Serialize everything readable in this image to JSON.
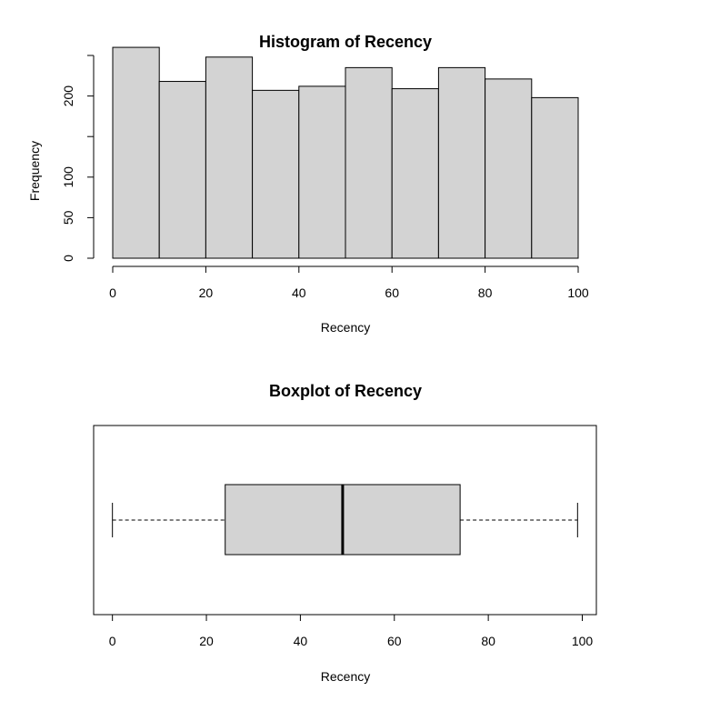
{
  "chart_data": [
    {
      "type": "bar",
      "title": "Histogram of Recency",
      "xlabel": "Recency",
      "ylabel": "Frequency",
      "bins": [
        {
          "x0": 0,
          "x1": 10,
          "count": 260
        },
        {
          "x0": 10,
          "x1": 20,
          "count": 218
        },
        {
          "x0": 20,
          "x1": 30,
          "count": 248
        },
        {
          "x0": 30,
          "x1": 40,
          "count": 207
        },
        {
          "x0": 40,
          "x1": 50,
          "count": 212
        },
        {
          "x0": 50,
          "x1": 60,
          "count": 235
        },
        {
          "x0": 60,
          "x1": 70,
          "count": 209
        },
        {
          "x0": 70,
          "x1": 80,
          "count": 235
        },
        {
          "x0": 80,
          "x1": 90,
          "count": 221
        },
        {
          "x0": 90,
          "x1": 100,
          "count": 198
        }
      ],
      "xticks": [
        0,
        20,
        40,
        60,
        80,
        100
      ],
      "yticks": [
        0,
        50,
        100,
        150,
        200,
        250
      ],
      "ytick_labels": [
        "0",
        "50",
        "100",
        "",
        "200",
        ""
      ],
      "xlim": [
        0,
        100
      ],
      "ylim": [
        0,
        250
      ],
      "bar_color": "#d3d3d3",
      "grid": false
    },
    {
      "type": "boxplot",
      "title": "Boxplot of Recency",
      "xlabel": "Recency",
      "whisker_low": 0,
      "q1": 24,
      "median": 49,
      "q3": 74,
      "whisker_high": 99,
      "xticks": [
        0,
        20,
        40,
        60,
        80,
        100
      ],
      "xlim": [
        -4,
        103
      ],
      "box_color": "#d3d3d3",
      "grid": false
    }
  ]
}
